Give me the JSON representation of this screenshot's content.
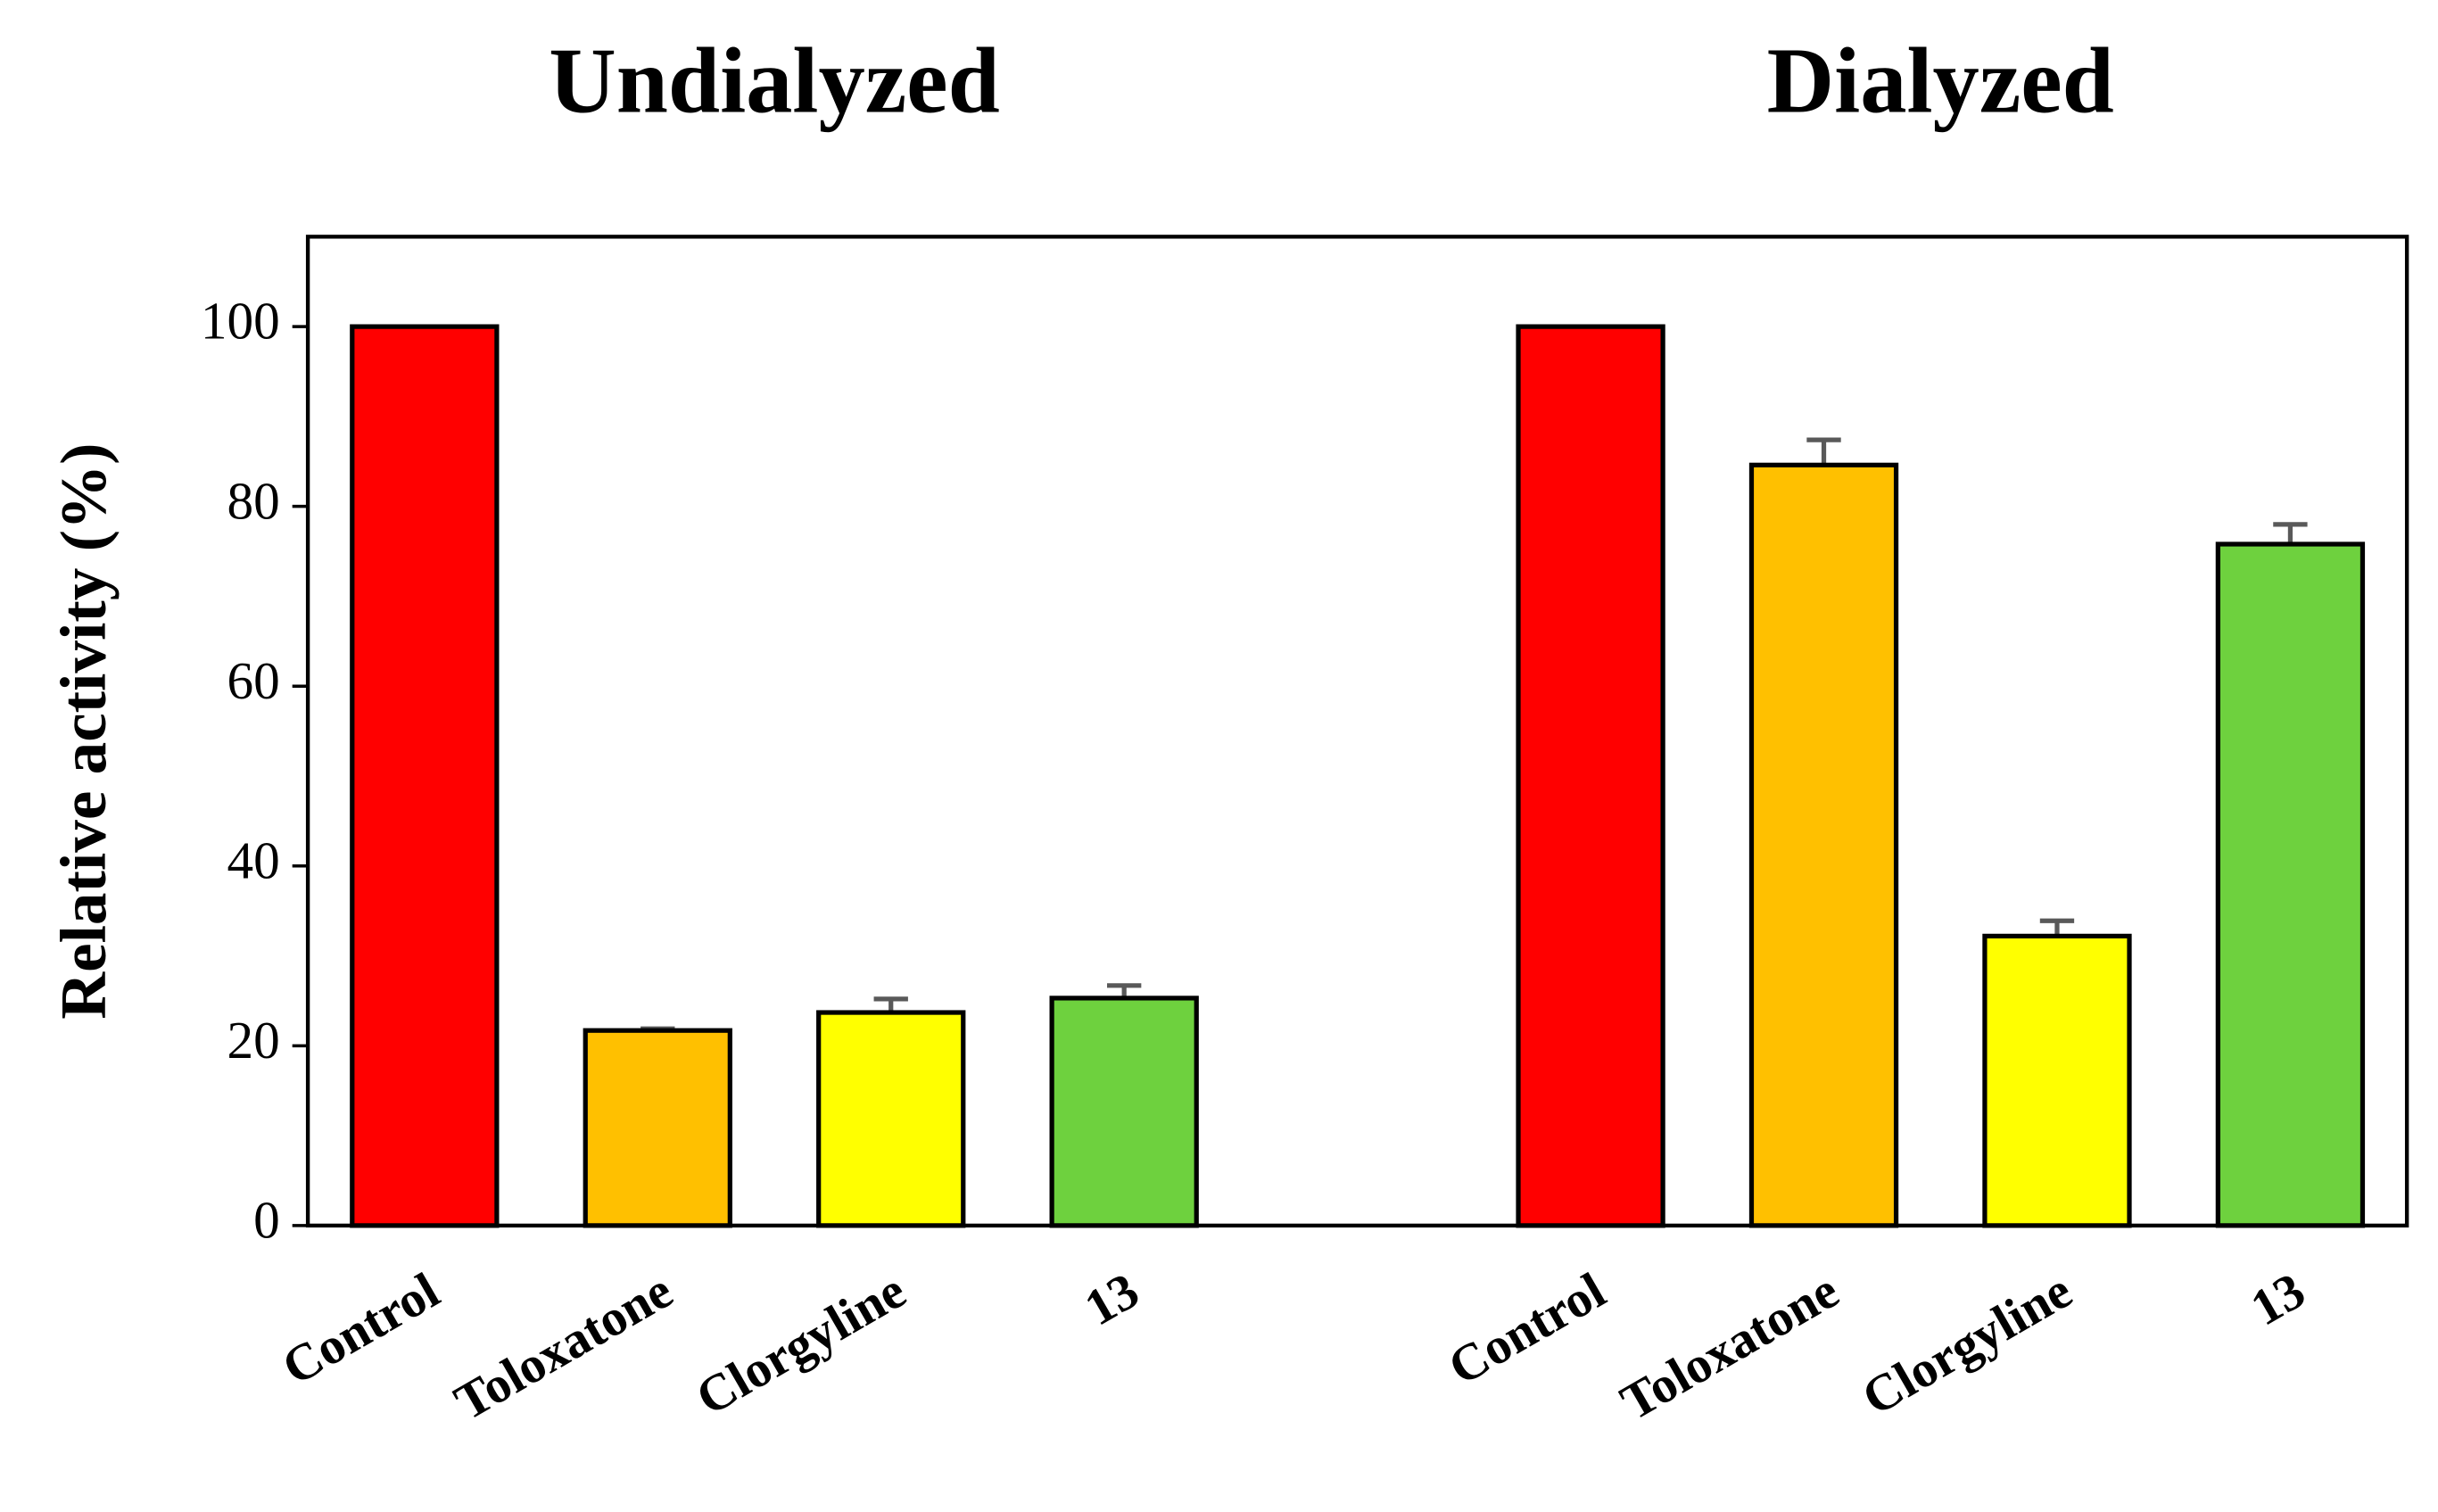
{
  "chart_data": {
    "type": "bar",
    "ylabel": "Relative activity (%)",
    "ylim": [
      0,
      110
    ],
    "yticks": [
      0,
      20,
      40,
      60,
      80,
      100
    ],
    "colors": [
      "#ff0000",
      "#ffc000",
      "#ffff00",
      "#6ed13e"
    ],
    "error_color": "#595959",
    "groups": [
      {
        "name": "Undialyzed",
        "categories": [
          "Control",
          "Toloxatone",
          "Clorgyline",
          "13"
        ],
        "values": [
          100,
          21.7,
          23.7,
          25.3
        ],
        "errors": [
          0,
          0.2,
          1.5,
          1.4
        ]
      },
      {
        "name": "Dialyzed",
        "categories": [
          "Control",
          "Toloxatone",
          "Clorgyline",
          "13"
        ],
        "values": [
          100,
          84.6,
          32.2,
          75.8
        ],
        "errors": [
          0,
          2.8,
          1.7,
          2.2
        ]
      }
    ]
  }
}
